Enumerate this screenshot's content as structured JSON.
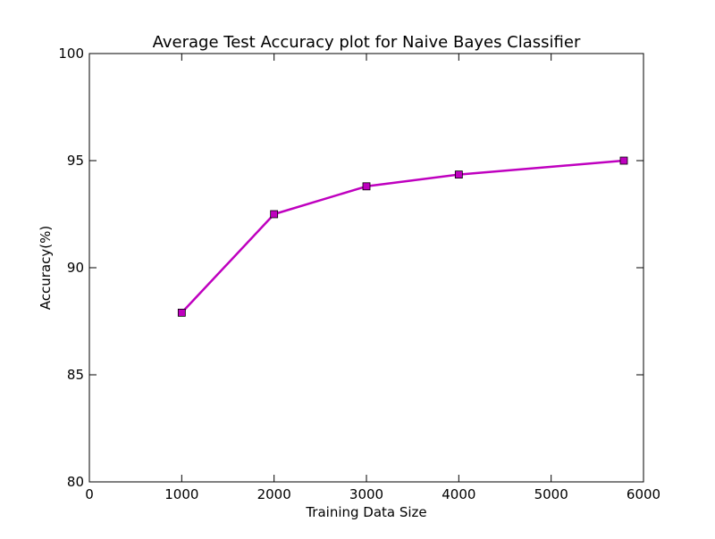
{
  "chart_data": {
    "type": "line",
    "title": "Average Test Accuracy plot for Naive Bayes Classifier",
    "xlabel": "Training Data Size",
    "ylabel": "Accuracy(%)",
    "xlim": [
      0,
      6000
    ],
    "ylim": [
      80,
      100
    ],
    "xticks": [
      0,
      1000,
      2000,
      3000,
      4000,
      5000,
      6000
    ],
    "yticks": [
      80,
      85,
      90,
      95,
      100
    ],
    "grid": false,
    "series": [
      {
        "color": "#bf00bf",
        "marker": "square",
        "points": [
          {
            "x": 1000,
            "y": 87.9
          },
          {
            "x": 2000,
            "y": 92.5
          },
          {
            "x": 3000,
            "y": 93.8
          },
          {
            "x": 4000,
            "y": 94.35
          },
          {
            "x": 5787,
            "y": 95.0
          }
        ]
      }
    ]
  }
}
